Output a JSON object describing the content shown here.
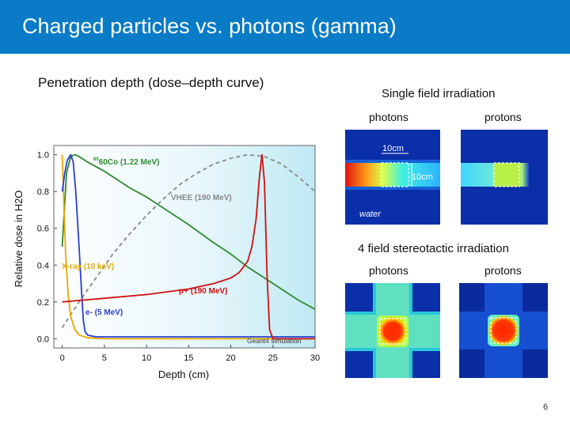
{
  "title": "Charged particles vs. photons (gamma)",
  "subtitle": "Penetration depth (dose–depth  curve)",
  "right": {
    "single_title": "Single field irradiation",
    "stereo_title": "4 field stereotactic irradiation",
    "photons_label": "photons",
    "protons_label": "protons",
    "scale_10cm_a": "10cm",
    "scale_10cm_b": "10cm",
    "water": "water"
  },
  "chart_data": {
    "type": "line",
    "xlabel": "Depth (cm)",
    "ylabel": "Relative dose in H2O",
    "xlim": [
      -1,
      30
    ],
    "ylim": [
      -0.05,
      1.05
    ],
    "xticks": [
      "0",
      "5",
      "10",
      "15",
      "20",
      "25",
      "30"
    ],
    "yticks": [
      "0.0",
      "0.2",
      "0.4",
      "0.6",
      "0.8",
      "1.0"
    ],
    "annotations": [
      "60Co (1.22 MeV)",
      "VHEE (190 MeV)",
      "X-ray (10 keV)",
      "p+ (190 MeV)",
      "e- (5 MeV)",
      "Geant4 simulation"
    ],
    "series": [
      {
        "name": "60Co (1.22 MeV)",
        "color": "#2e8b2e",
        "style": "solid",
        "x": [
          0,
          0.5,
          1,
          1.5,
          2,
          3,
          5,
          8,
          10,
          12,
          15,
          18,
          20,
          22,
          25,
          28,
          30
        ],
        "y": [
          0.5,
          0.9,
          0.99,
          1.0,
          0.99,
          0.96,
          0.91,
          0.82,
          0.77,
          0.71,
          0.62,
          0.52,
          0.46,
          0.39,
          0.3,
          0.21,
          0.16
        ]
      },
      {
        "name": "VHEE (190 MeV)",
        "color": "#888888",
        "style": "dashed",
        "x": [
          0,
          2,
          4,
          6,
          8,
          10,
          12,
          14,
          16,
          18,
          20,
          22,
          24,
          26,
          28,
          30
        ],
        "y": [
          0.06,
          0.2,
          0.33,
          0.46,
          0.57,
          0.67,
          0.76,
          0.84,
          0.9,
          0.95,
          0.98,
          1.0,
          0.99,
          0.95,
          0.88,
          0.8
        ]
      },
      {
        "name": "X-ray (10 keV)",
        "color": "#e8a800",
        "style": "solid",
        "x": [
          0,
          0.2,
          0.4,
          0.7,
          1,
          1.5,
          2,
          3,
          5,
          10,
          20,
          30
        ],
        "y": [
          1.0,
          0.72,
          0.46,
          0.24,
          0.12,
          0.05,
          0.02,
          0.005,
          0.0,
          0.0,
          0.0,
          0.0
        ]
      },
      {
        "name": "e- (5 MeV)",
        "color": "#2a3fcf",
        "style": "solid",
        "x": [
          0,
          0.3,
          0.6,
          1,
          1.3,
          1.6,
          2,
          2.3,
          2.5,
          2.7,
          3,
          4,
          10,
          30
        ],
        "y": [
          0.8,
          0.9,
          0.97,
          1.0,
          0.96,
          0.8,
          0.5,
          0.25,
          0.1,
          0.04,
          0.02,
          0.01,
          0.01,
          0.01
        ]
      },
      {
        "name": "p+ (190 MeV)",
        "color": "#d01010",
        "style": "solid",
        "x": [
          0,
          5,
          10,
          15,
          18,
          20,
          21,
          22,
          22.5,
          23,
          23.4,
          23.7,
          24,
          24.3,
          24.6,
          25,
          26,
          30
        ],
        "y": [
          0.2,
          0.22,
          0.24,
          0.27,
          0.3,
          0.33,
          0.36,
          0.42,
          0.5,
          0.65,
          0.88,
          1.0,
          0.85,
          0.35,
          0.05,
          0.0,
          0.0,
          0.0
        ]
      }
    ]
  }
}
